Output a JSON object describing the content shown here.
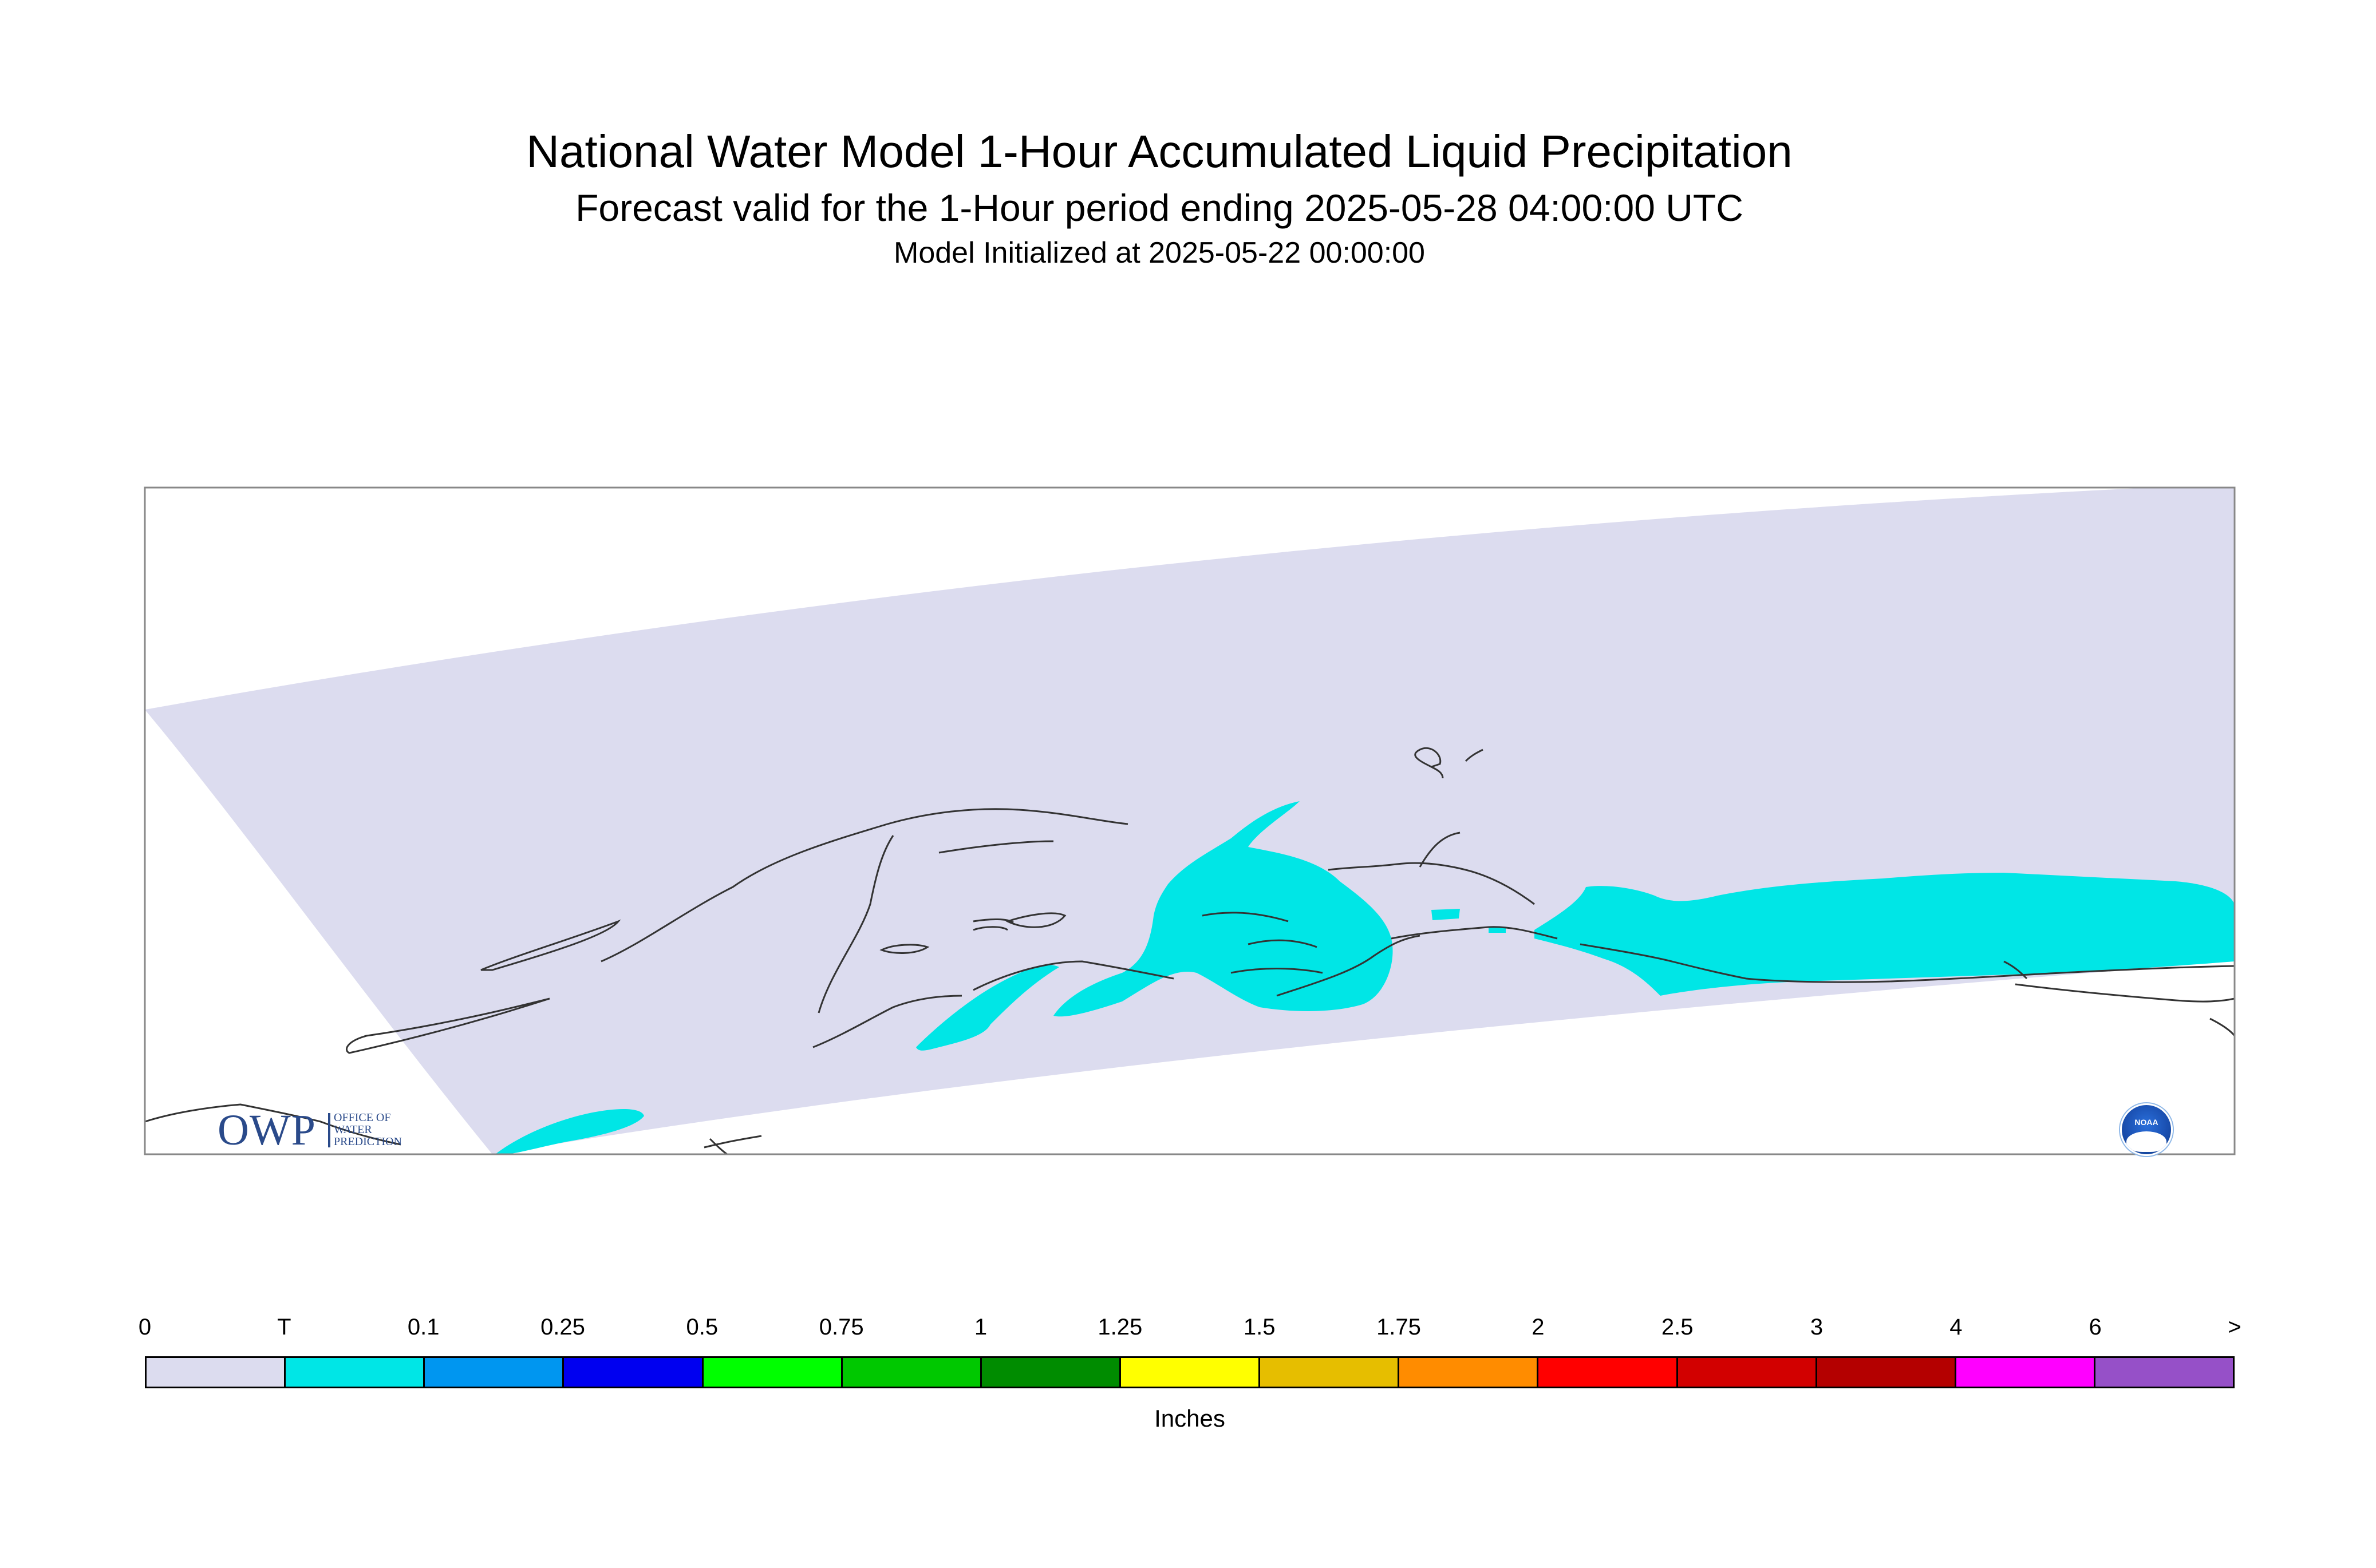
{
  "title": "National Water Model 1-Hour Accumulated Liquid Precipitation",
  "subtitle": "Forecast valid for the 1-Hour period ending 2025-05-28 04:00:00 UTC",
  "initialized": "Model Initialized at 2025-05-22 00:00:00",
  "colors": {
    "domain_zero": "#dcdcef",
    "trace": "#00e6e6",
    "coastline": "#333333",
    "frame": "#888888"
  },
  "logos": {
    "owp": {
      "letters": "OWP",
      "line1": "OFFICE OF",
      "line2": "WATER",
      "line3": "PREDICTION",
      "icon": "owp-logo-icon"
    },
    "noaa": {
      "text": "NOAA",
      "icon": "noaa-logo-icon"
    }
  },
  "legend": {
    "units": "Inches",
    "tick_labels": [
      "0",
      "T",
      "0.1",
      "0.25",
      "0.5",
      "0.75",
      "1",
      "1.25",
      "1.5",
      "1.75",
      "2",
      "2.5",
      "3",
      "4",
      "6",
      ">"
    ],
    "bins": [
      {
        "color": "#dcdcef"
      },
      {
        "color": "#00e6e6"
      },
      {
        "color": "#0096f0"
      },
      {
        "color": "#0000f0"
      },
      {
        "color": "#00ff00"
      },
      {
        "color": "#00c800"
      },
      {
        "color": "#008c00"
      },
      {
        "color": "#ffff00"
      },
      {
        "color": "#e6be00"
      },
      {
        "color": "#ff8c00"
      },
      {
        "color": "#ff0000"
      },
      {
        "color": "#d20000"
      },
      {
        "color": "#b40000"
      },
      {
        "color": "#ff00ff"
      },
      {
        "color": "#9650c8"
      }
    ]
  }
}
